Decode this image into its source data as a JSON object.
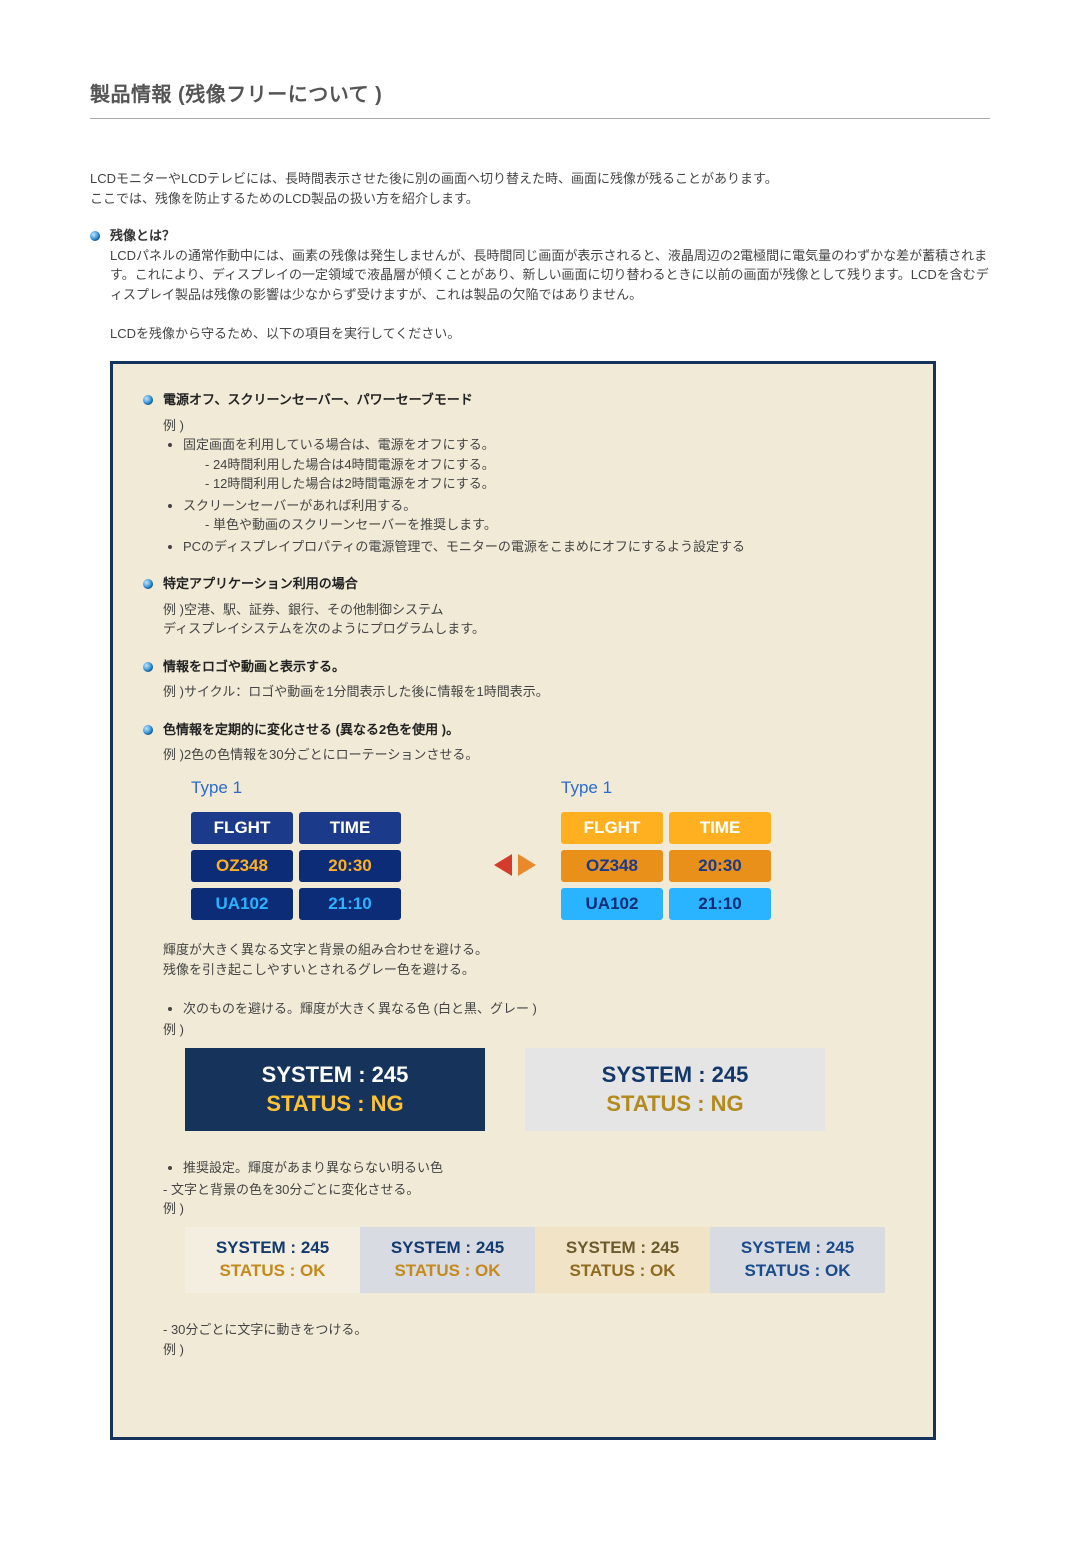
{
  "title": "製品情報 (残像フリーについて )",
  "intro1": "LCDモニターやLCDテレビには、長時間表示させた後に別の画面へ切り替えた時、画面に残像が残ることがあります。",
  "intro2": "ここでは、残像を防止するためのLCD製品の扱い方を紹介します。",
  "whatis": {
    "title": "残像とは？",
    "body": "LCDパネルの通常作動中には、画素の残像は発生しませんが、長時間同じ画面が表示されると、液晶周辺の2電極間に電気量のわずかな差が蓄積されます。これにより、ディスプレイの一定領域で液晶層が傾くことがあり、新しい画面に切り替わるときに以前の画面が残像として残ります。LCDを含むディスプレイ製品は残像の影響は少なからず受けますが、これは製品の欠陥ではありません。",
    "note": "LCDを残像から守るため、以下の項目を実行してください。"
  },
  "sec1": {
    "title": "電源オフ、スクリーンセーバー、パワーセーブモード",
    "ex": "例 )",
    "b1": "固定画面を利用している場合は、電源をオフにする。",
    "b1s1": "- 24時間利用した場合は4時間電源をオフにする。",
    "b1s2": "- 12時間利用した場合は2時間電源をオフにする。",
    "b2": "スクリーンセーバーがあれば利用する。",
    "b2s1": "- 単色や動画のスクリーンセーバーを推奨します。",
    "b3": "PCのディスプレイプロパティの電源管理で、モニターの電源をこまめにオフにするよう設定する"
  },
  "sec2": {
    "title": "特定アプリケーション利用の場合",
    "l1": "例 )空港、駅、証券、銀行、その他制御システム",
    "l2": "ディスプレイシステムを次のようにプログラムします。"
  },
  "sec3": {
    "title": "情報をロゴや動画と表示する。",
    "l1": "例 )サイクル：ロゴや動画を1分間表示した後に情報を1時間表示。"
  },
  "sec4": {
    "title": "色情報を定期的に変化させる (異なる2色を使用 )。",
    "l1": "例 )2色の色情報を30分ごとにローテーションさせる。",
    "flight": {
      "type_label": "Type 1",
      "h1": "FLGHT",
      "h2": "TIME",
      "r1c1": "OZ348",
      "r1c2": "20:30",
      "r2c1": "UA102",
      "r2c2": "21:10"
    },
    "after1": "輝度が大きく異なる文字と背景の組み合わせを避ける。",
    "after2": "残像を引き起こしやすいとされるグレー色を避ける。",
    "bullet_avoid": "次のものを避ける。輝度が大きく異なる色 (白と黒、グレー )",
    "ex": "例 )",
    "ng_sys": "SYSTEM : 245",
    "ng_stat": "STATUS : NG",
    "bullet_rec": "推奨設定。輝度があまり異ならない明るい色",
    "rec_note": "- 文字と背景の色を30分ごとに変化させる。",
    "ok_sys": "SYSTEM : 245",
    "ok_stat": "STATUS : OK",
    "move_note": "- 30分ごとに文字に動きをつける。"
  }
}
